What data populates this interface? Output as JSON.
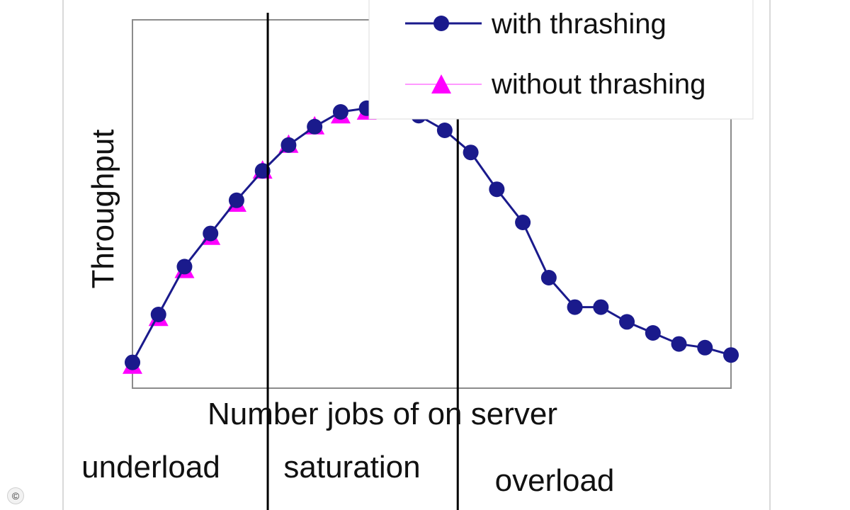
{
  "chart_data": {
    "type": "line",
    "title": "",
    "xlabel": "Number jobs of on server",
    "ylabel": "Throughput",
    "x": [
      1,
      2,
      3,
      4,
      5,
      6,
      7,
      8,
      9,
      10,
      11,
      12,
      13,
      14,
      15,
      16,
      17,
      18,
      19,
      20,
      21,
      22,
      23,
      24
    ],
    "series": [
      {
        "name": "with thrashing",
        "color": "#1a1a8c",
        "marker": "circle",
        "line": true,
        "values": [
          0.07,
          0.2,
          0.33,
          0.42,
          0.51,
          0.59,
          0.66,
          0.71,
          0.75,
          0.76,
          0.76,
          0.74,
          0.7,
          0.64,
          0.54,
          0.45,
          0.3,
          0.22,
          0.22,
          0.18,
          0.15,
          0.12,
          0.11,
          0.09
        ]
      },
      {
        "name": "without thrashing",
        "color": "#ff00ff",
        "marker": "triangle",
        "line": false,
        "values": [
          0.06,
          0.19,
          0.32,
          0.41,
          0.5,
          0.59,
          0.66,
          0.71,
          0.74,
          0.75,
          0.76,
          0.76,
          0.77,
          0.76,
          0.76,
          0.77,
          0.76,
          0.77,
          0.76,
          0.76,
          0.77,
          0.76,
          0.76,
          0.77
        ]
      }
    ],
    "ylim": [
      0,
      1
    ],
    "xlim": [
      1,
      24
    ],
    "grid": false,
    "legend_position": "top-right",
    "regions": [
      {
        "label": "underload",
        "start": 1,
        "end": 6.2
      },
      {
        "label": "saturation",
        "start": 6.2,
        "end": 13.5
      },
      {
        "label": "overload",
        "start": 13.5,
        "end": 24
      }
    ],
    "region_boundaries": [
      6.2,
      13.5
    ]
  },
  "footer": {
    "copyright_symbol": "©"
  }
}
